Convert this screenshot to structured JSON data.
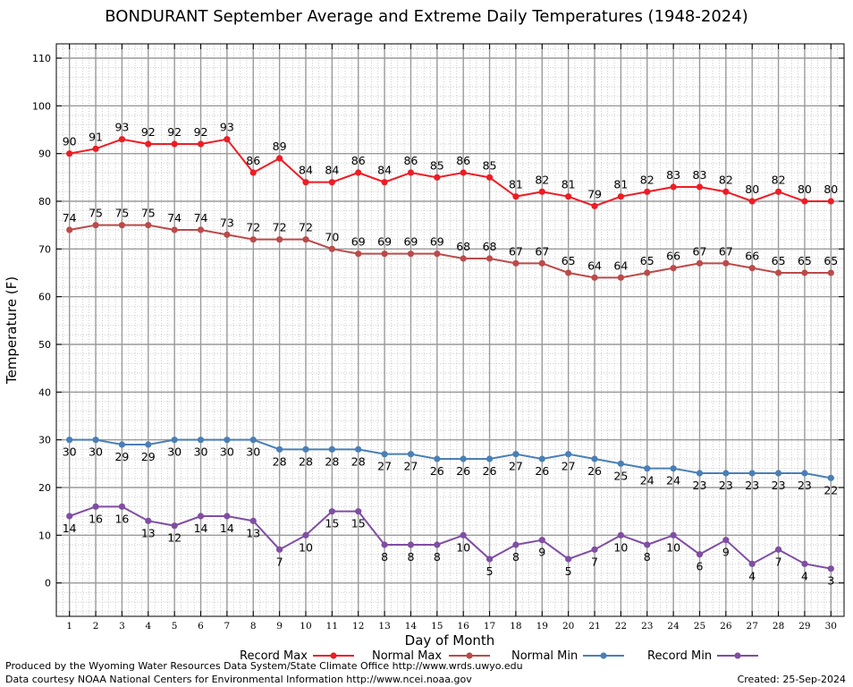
{
  "chart_data": {
    "type": "line",
    "title": "BONDURANT September Average and Extreme Daily Temperatures (1948-2024)",
    "xlabel": "Day of Month",
    "ylabel": "Temperature (F)",
    "xlim": [
      0.5,
      30.5
    ],
    "ylim": [
      -7,
      113
    ],
    "yticks": [
      0,
      10,
      20,
      30,
      40,
      50,
      60,
      70,
      80,
      90,
      100,
      110
    ],
    "x": [
      1,
      2,
      3,
      4,
      5,
      6,
      7,
      8,
      9,
      10,
      11,
      12,
      13,
      14,
      15,
      16,
      17,
      18,
      19,
      20,
      21,
      22,
      23,
      24,
      25,
      26,
      27,
      28,
      29,
      30
    ],
    "grid": true,
    "legend_position": "bottom",
    "series": [
      {
        "name": "Record Max",
        "color": "#ee1c24",
        "label_position": "above",
        "values": [
          90,
          91,
          93,
          92,
          92,
          92,
          93,
          86,
          89,
          84,
          84,
          86,
          84,
          86,
          85,
          86,
          85,
          81,
          82,
          81,
          79,
          81,
          82,
          83,
          83,
          82,
          80,
          82,
          80,
          80
        ]
      },
      {
        "name": "Normal Max",
        "color": "#bc4a4a",
        "label_position": "above",
        "values": [
          74,
          75,
          75,
          75,
          74,
          74,
          73,
          72,
          72,
          72,
          70,
          69,
          69,
          69,
          69,
          68,
          68,
          67,
          67,
          65,
          64,
          64,
          65,
          66,
          67,
          67,
          66,
          65,
          65,
          65
        ]
      },
      {
        "name": "Normal Min",
        "color": "#4a7fb5",
        "label_position": "below",
        "values": [
          30,
          30,
          29,
          29,
          30,
          30,
          30,
          30,
          28,
          28,
          28,
          28,
          27,
          27,
          26,
          26,
          26,
          27,
          26,
          27,
          26,
          25,
          24,
          24,
          23,
          23,
          23,
          23,
          23,
          22
        ]
      },
      {
        "name": "Record Min",
        "color": "#7f4ea3",
        "label_position": "below",
        "values": [
          14,
          16,
          16,
          13,
          12,
          14,
          14,
          13,
          7,
          10,
          15,
          15,
          8,
          8,
          8,
          10,
          5,
          8,
          9,
          5,
          7,
          10,
          8,
          10,
          6,
          9,
          4,
          7,
          4,
          3
        ]
      }
    ]
  },
  "footer": {
    "produced_by": "Produced by the Wyoming Water Resources Data System/State Climate Office http://www.wrds.uwyo.edu",
    "courtesy": "Data courtesy NOAA National Centers for Environmental Information http://www.ncei.noaa.gov",
    "created": "Created:  25-Sep-2024"
  }
}
